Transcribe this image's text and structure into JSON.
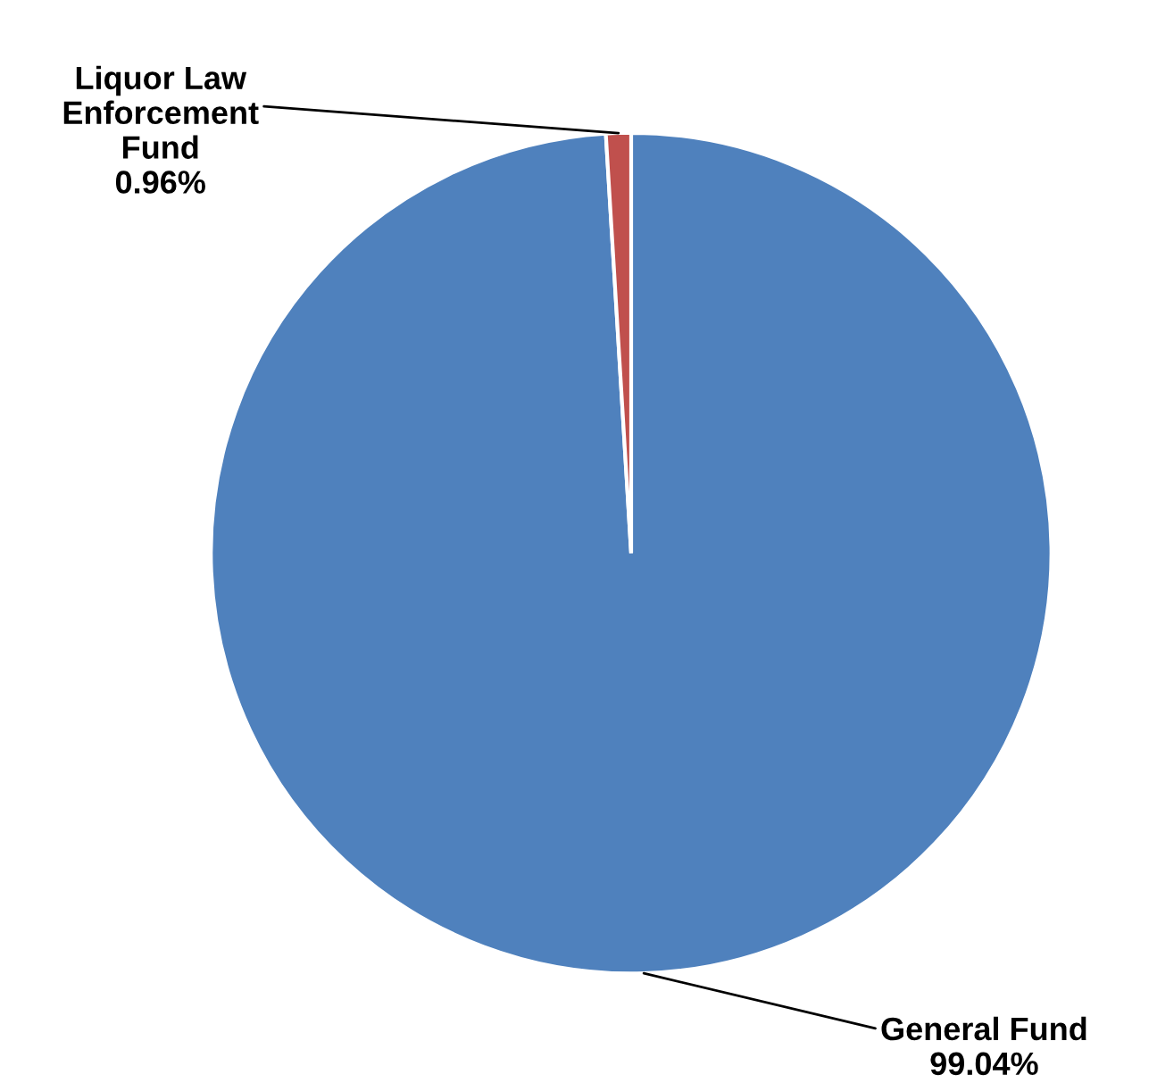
{
  "chart_data": {
    "type": "pie",
    "categories": [
      "General Fund",
      "Liquor Law\nEnforcement\nFund"
    ],
    "values": [
      99.04,
      0.96
    ],
    "value_labels": [
      "99.04%",
      "0.96%"
    ],
    "colors": [
      "#4f81bd",
      "#c0504d"
    ],
    "legend": false
  }
}
